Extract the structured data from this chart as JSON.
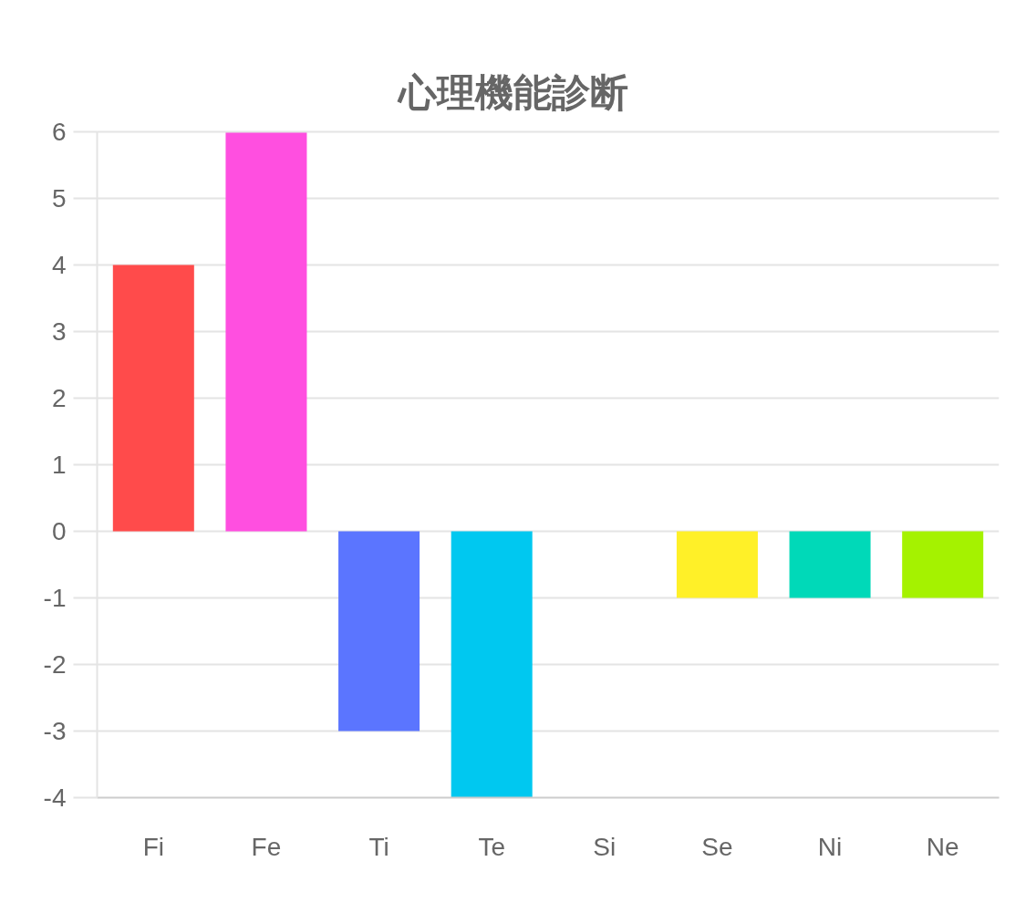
{
  "chart_data": {
    "type": "bar",
    "title": "心理機能診断",
    "categories": [
      "Fi",
      "Fe",
      "Ti",
      "Te",
      "Si",
      "Se",
      "Ni",
      "Ne"
    ],
    "values": [
      4,
      6,
      -3,
      -4,
      0,
      -1,
      -1,
      -1
    ],
    "colors": [
      "#ff4b4b",
      "#ff4fe0",
      "#5b75ff",
      "#00c8f0",
      null,
      "#fff028",
      "#00d9b8",
      "#a5f200"
    ],
    "ylim": [
      -4,
      6
    ],
    "yticks": [
      -4,
      -3,
      -2,
      -1,
      0,
      1,
      2,
      3,
      4,
      5,
      6
    ],
    "grid": "y"
  }
}
